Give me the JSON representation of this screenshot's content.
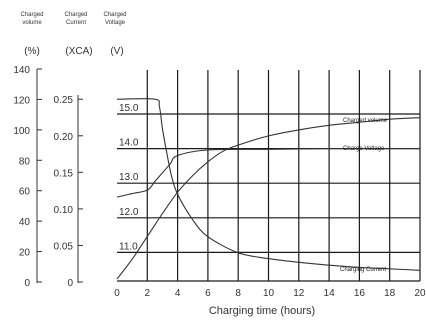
{
  "chart_data": {
    "type": "line",
    "headers": [
      {
        "line1": "Charged",
        "line2": "volume"
      },
      {
        "line1": "Charged",
        "line2": "Current"
      },
      {
        "line1": "Charged",
        "line2": "Voltage"
      }
    ],
    "units": [
      "(%)",
      "(XCA)",
      "(V)"
    ],
    "xlabel": "Charging time (hours)",
    "x_ticks": [
      "0",
      "2",
      "4",
      "6",
      "8",
      "10",
      "12",
      "14",
      "16",
      "18",
      "20"
    ],
    "xlim": [
      0,
      20
    ],
    "axes": {
      "volume": {
        "ticks": [
          "140",
          "120",
          "100",
          "80",
          "60",
          "40",
          "20",
          "0"
        ],
        "ylim": [
          0,
          140
        ]
      },
      "current": {
        "ticks": [
          "0.25",
          "0.20",
          "0.15",
          "0.10",
          "0.05",
          "0"
        ],
        "ylim": [
          0,
          0.29
        ]
      },
      "voltage": {
        "ticks": [
          "15.0",
          "14.0",
          "13.0",
          "12.0",
          "11.0"
        ],
        "ylim": [
          10.25,
          15.6
        ]
      }
    },
    "series": [
      {
        "name": "Charged volume",
        "axis": "volume",
        "x": [
          0,
          1,
          2,
          3,
          4,
          5,
          6,
          7,
          8,
          10,
          12,
          14,
          16,
          18,
          20
        ],
        "y": [
          2,
          15,
          30,
          45,
          59,
          70,
          79,
          86,
          90,
          96,
          100,
          103,
          105,
          107,
          108
        ]
      },
      {
        "name": "Charge Voltage",
        "axis": "voltage",
        "x": [
          0,
          1,
          2,
          2.5,
          3,
          3.5,
          4,
          6,
          10,
          14,
          17,
          20
        ],
        "y": [
          12.6,
          12.7,
          12.8,
          13.05,
          13.3,
          13.55,
          13.8,
          13.96,
          13.98,
          14.0,
          14.0,
          14.0
        ]
      },
      {
        "name": "Charging Current",
        "axis": "current",
        "x": [
          0,
          2.5,
          2.8,
          3,
          3.3,
          3.6,
          4,
          5,
          6,
          8,
          10,
          12,
          14,
          16,
          18,
          20
        ],
        "y": [
          0.25,
          0.25,
          0.24,
          0.21,
          0.175,
          0.145,
          0.12,
          0.085,
          0.062,
          0.04,
          0.032,
          0.027,
          0.023,
          0.02,
          0.018,
          0.016
        ]
      }
    ],
    "grid": true
  }
}
